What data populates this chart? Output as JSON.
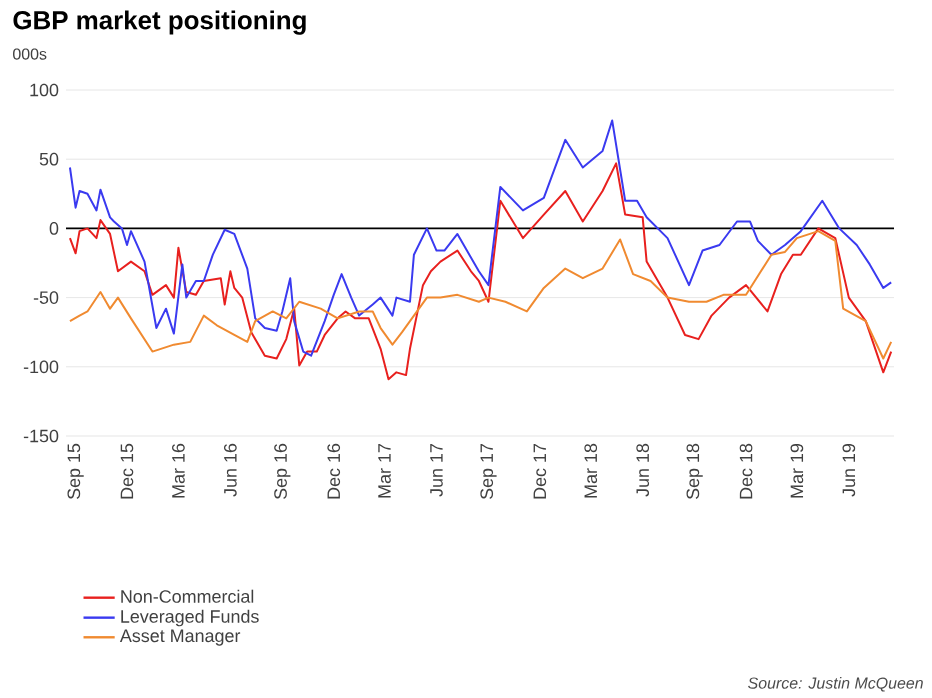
{
  "chart_data": {
    "type": "line",
    "title": "GBP market positioning",
    "ylabel": "000s",
    "annotations": [
      "Source: Justin McQueen"
    ],
    "xlim": [
      "2015-08-15",
      "2019-08-20"
    ],
    "ylim": [
      -150,
      100
    ],
    "yticks": [
      -150,
      -100,
      -50,
      0,
      50,
      100
    ],
    "xticks": [
      {
        "value": "2015-09-01",
        "label": "Sep 15"
      },
      {
        "value": "2015-12-01",
        "label": "Dec 15"
      },
      {
        "value": "2016-03-01",
        "label": "Mar 16"
      },
      {
        "value": "2016-06-01",
        "label": "Jun 16"
      },
      {
        "value": "2016-09-01",
        "label": "Sep 16"
      },
      {
        "value": "2016-12-01",
        "label": "Dec 16"
      },
      {
        "value": "2017-03-01",
        "label": "Mar 17"
      },
      {
        "value": "2017-06-01",
        "label": "Jun 17"
      },
      {
        "value": "2017-09-01",
        "label": "Sep 17"
      },
      {
        "value": "2017-12-01",
        "label": "Dec 17"
      },
      {
        "value": "2018-03-01",
        "label": "Mar 18"
      },
      {
        "value": "2018-06-01",
        "label": "Jun 18"
      },
      {
        "value": "2018-09-01",
        "label": "Sep 18"
      },
      {
        "value": "2018-12-01",
        "label": "Dec 18"
      },
      {
        "value": "2019-03-01",
        "label": "Mar 19"
      },
      {
        "value": "2019-06-01",
        "label": "Jun 19"
      }
    ],
    "grid": "y",
    "legend": "bottom",
    "ref_lines": [
      {
        "axis": "y",
        "value": 0,
        "color": "#000000"
      }
    ],
    "series": [
      {
        "name": "Non-Commercial",
        "color": "#e8201e",
        "x": [
          "2015-08-22",
          "2015-09-01",
          "2015-09-08",
          "2015-09-22",
          "2015-10-08",
          "2015-10-15",
          "2015-11-01",
          "2015-11-15",
          "2015-12-08",
          "2016-01-01",
          "2016-01-15",
          "2016-02-08",
          "2016-02-22",
          "2016-03-01",
          "2016-03-15",
          "2016-04-01",
          "2016-04-15",
          "2016-05-15",
          "2016-05-22",
          "2016-06-01",
          "2016-06-08",
          "2016-06-22",
          "2016-07-08",
          "2016-08-01",
          "2016-08-22",
          "2016-09-08",
          "2016-09-22",
          "2016-10-01",
          "2016-10-15",
          "2016-11-01",
          "2016-11-15",
          "2016-12-08",
          "2016-12-22",
          "2017-01-08",
          "2017-02-01",
          "2017-02-22",
          "2017-03-08",
          "2017-03-22",
          "2017-04-08",
          "2017-04-15",
          "2017-05-08",
          "2017-05-22",
          "2017-06-08",
          "2017-07-08",
          "2017-08-01",
          "2017-08-15",
          "2017-09-01",
          "2017-09-22",
          "2017-11-01",
          "2017-12-08",
          "2018-01-15",
          "2018-02-15",
          "2018-03-22",
          "2018-04-15",
          "2018-05-01",
          "2018-06-01",
          "2018-06-08",
          "2018-07-15",
          "2018-08-15",
          "2018-09-08",
          "2018-10-01",
          "2018-11-01",
          "2018-12-01",
          "2019-01-08",
          "2019-02-01",
          "2019-02-22",
          "2019-03-08",
          "2019-04-08",
          "2019-05-08",
          "2019-06-01",
          "2019-07-01",
          "2019-08-01",
          "2019-08-15"
        ],
        "values": [
          -7,
          -18,
          -2,
          0,
          -7,
          6,
          -4,
          -31,
          -24,
          -31,
          -48,
          -41,
          -50,
          -14,
          -46,
          -48,
          -38,
          -36,
          -55,
          -31,
          -43,
          -50,
          -75,
          -92,
          -94,
          -80,
          -58,
          -99,
          -89,
          -89,
          -77,
          -65,
          -60,
          -65,
          -65,
          -87,
          -109,
          -104,
          -106,
          -87,
          -41,
          -31,
          -24,
          -16,
          -31,
          -38,
          -53,
          20,
          -7,
          10,
          27,
          5,
          27,
          47,
          10,
          8,
          -24,
          -50,
          -77,
          -80,
          -63,
          -50,
          -41,
          -60,
          -33,
          -19,
          -19,
          0,
          -7,
          -50,
          -67,
          -104,
          -89
        ]
      },
      {
        "name": "Leveraged Funds",
        "color": "#3a3af0",
        "x": [
          "2015-08-22",
          "2015-09-01",
          "2015-09-08",
          "2015-09-22",
          "2015-10-08",
          "2015-10-15",
          "2015-11-01",
          "2015-11-08",
          "2015-11-22",
          "2015-12-01",
          "2015-12-08",
          "2016-01-01",
          "2016-01-22",
          "2016-02-08",
          "2016-02-22",
          "2016-03-08",
          "2016-03-15",
          "2016-04-01",
          "2016-04-15",
          "2016-05-01",
          "2016-05-22",
          "2016-06-08",
          "2016-07-01",
          "2016-07-15",
          "2016-08-01",
          "2016-08-22",
          "2016-09-01",
          "2016-09-15",
          "2016-09-22",
          "2016-10-08",
          "2016-10-22",
          "2016-11-15",
          "2016-12-01",
          "2016-12-15",
          "2017-01-01",
          "2017-01-15",
          "2017-02-08",
          "2017-02-22",
          "2017-03-15",
          "2017-03-22",
          "2017-04-15",
          "2017-04-22",
          "2017-05-15",
          "2017-06-01",
          "2017-06-15",
          "2017-07-08",
          "2017-07-22",
          "2017-08-15",
          "2017-09-01",
          "2017-09-22",
          "2017-11-01",
          "2017-12-08",
          "2018-01-15",
          "2018-02-15",
          "2018-03-22",
          "2018-04-08",
          "2018-05-01",
          "2018-05-22",
          "2018-06-08",
          "2018-07-15",
          "2018-08-22",
          "2018-09-15",
          "2018-10-15",
          "2018-11-15",
          "2018-12-08",
          "2018-12-22",
          "2019-01-15",
          "2019-02-08",
          "2019-03-08",
          "2019-04-15",
          "2019-05-15",
          "2019-06-15",
          "2019-07-08",
          "2019-08-01",
          "2019-08-15"
        ],
        "values": [
          44,
          15,
          27,
          25,
          13,
          28,
          8,
          5,
          0,
          -12,
          -2,
          -24,
          -72,
          -58,
          -76,
          -26,
          -50,
          -38,
          -38,
          -19,
          -1,
          -4,
          -29,
          -65,
          -72,
          -74,
          -60,
          -36,
          -67,
          -89,
          -92,
          -67,
          -48,
          -33,
          -50,
          -63,
          -55,
          -50,
          -63,
          -50,
          -53,
          -19,
          0,
          -16,
          -16,
          -4,
          -14,
          -31,
          -41,
          30,
          13,
          22,
          64,
          44,
          56,
          78,
          20,
          20,
          8,
          -7,
          -41,
          -16,
          -12,
          5,
          5,
          -9,
          -19,
          -12,
          -2,
          20,
          0,
          -12,
          -26,
          -43,
          -39
        ]
      },
      {
        "name": "Asset Manager",
        "color": "#f08a30",
        "x": [
          "2015-08-22",
          "2015-09-08",
          "2015-09-22",
          "2015-10-15",
          "2015-11-01",
          "2015-11-15",
          "2015-12-08",
          "2016-01-15",
          "2016-02-22",
          "2016-03-22",
          "2016-04-15",
          "2016-05-08",
          "2016-06-08",
          "2016-07-01",
          "2016-07-15",
          "2016-08-15",
          "2016-09-08",
          "2016-10-01",
          "2016-11-08",
          "2016-12-08",
          "2017-01-15",
          "2017-02-08",
          "2017-02-22",
          "2017-03-15",
          "2017-04-01",
          "2017-04-15",
          "2017-05-15",
          "2017-06-08",
          "2017-07-08",
          "2017-08-15",
          "2017-09-01",
          "2017-10-01",
          "2017-11-08",
          "2017-12-08",
          "2018-01-15",
          "2018-02-15",
          "2018-03-22",
          "2018-04-22",
          "2018-05-15",
          "2018-06-15",
          "2018-07-15",
          "2018-08-22",
          "2018-09-22",
          "2018-10-22",
          "2018-12-01",
          "2019-01-15",
          "2019-02-08",
          "2019-03-01",
          "2019-04-08",
          "2019-05-08",
          "2019-05-22",
          "2019-07-01",
          "2019-08-01",
          "2019-08-15"
        ],
        "values": [
          -67,
          -63,
          -60,
          -46,
          -58,
          -50,
          -65,
          -89,
          -84,
          -82,
          -63,
          -70,
          -77,
          -82,
          -67,
          -60,
          -65,
          -53,
          -58,
          -65,
          -60,
          -60,
          -72,
          -84,
          -75,
          -67,
          -50,
          -50,
          -48,
          -53,
          -50,
          -53,
          -60,
          -43,
          -29,
          -36,
          -29,
          -8,
          -33,
          -38,
          -50,
          -53,
          -53,
          -48,
          -48,
          -19,
          -17,
          -7,
          -2,
          -9,
          -58,
          -67,
          -94,
          -82
        ]
      }
    ]
  }
}
